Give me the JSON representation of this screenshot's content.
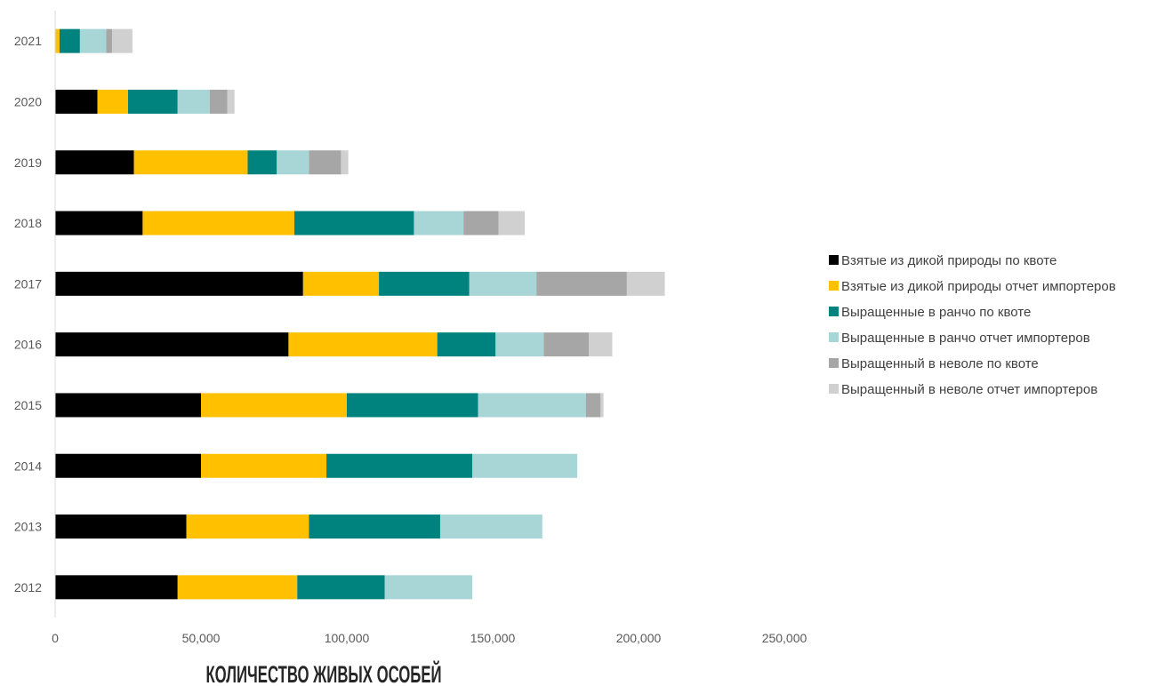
{
  "chart_data": {
    "type": "bar",
    "orientation": "horizontal",
    "stacked": true,
    "categories": [
      "2021",
      "2020",
      "2019",
      "2018",
      "2017",
      "2016",
      "2015",
      "2014",
      "2013",
      "2012"
    ],
    "series": [
      {
        "name": "Взятые из дикой природы по квоте",
        "color": "#000000",
        "values": [
          0,
          14500,
          27000,
          30000,
          85000,
          80000,
          50000,
          50000,
          45000,
          42000
        ]
      },
      {
        "name": "Взятые из дикой природы отчет импортеров",
        "color": "#FFC000",
        "values": [
          1500,
          10500,
          39000,
          52000,
          26000,
          51000,
          50000,
          43000,
          42000,
          41000
        ]
      },
      {
        "name": "Выращенные в ранчо по квоте",
        "color": "#00837E",
        "values": [
          7000,
          17000,
          10000,
          41000,
          31000,
          20000,
          45000,
          50000,
          45000,
          30000
        ]
      },
      {
        "name": "Выращенные в ранчо отчет импортеров",
        "color": "#A8D5D5",
        "values": [
          9000,
          11000,
          11000,
          17000,
          23000,
          16500,
          37000,
          36000,
          35000,
          30000
        ]
      },
      {
        "name": "Выращенный в неволе по квоте",
        "color": "#A6A6A6",
        "values": [
          2000,
          6000,
          11000,
          12000,
          31000,
          15500,
          5000,
          0,
          0,
          0
        ]
      },
      {
        "name": "Выращенный в неволе отчет импортеров",
        "color": "#D0D0D0",
        "values": [
          7000,
          2500,
          2500,
          9000,
          13000,
          8000,
          1000,
          0,
          0,
          0
        ]
      }
    ],
    "x_ticks": [
      "0",
      "50,000",
      "100,000",
      "150,000",
      "200,000",
      "250,000"
    ],
    "xlim": [
      0,
      250000
    ],
    "xlabel": "КОЛИЧЕСТВО ЖИВЫХ ОСОБЕЙ",
    "ylabel": "",
    "title": "",
    "grid": false,
    "legend_position": "right"
  }
}
